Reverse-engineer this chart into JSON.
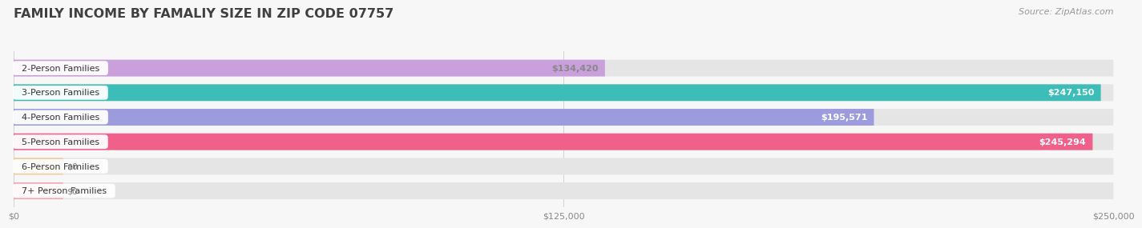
{
  "title": "FAMILY INCOME BY FAMALIY SIZE IN ZIP CODE 07757",
  "source": "Source: ZipAtlas.com",
  "categories": [
    "2-Person Families",
    "3-Person Families",
    "4-Person Families",
    "5-Person Families",
    "6-Person Families",
    "7+ Person Families"
  ],
  "values": [
    134420,
    247150,
    195571,
    245294,
    0,
    0
  ],
  "bar_colors": [
    "#c9a0dc",
    "#3dbdb8",
    "#9b9bdd",
    "#f0608a",
    "#f5c89a",
    "#f5a0b0"
  ],
  "value_label_colors": [
    "#888888",
    "#ffffff",
    "#ffffff",
    "#ffffff",
    "#888888",
    "#888888"
  ],
  "value_labels": [
    "$134,420",
    "$247,150",
    "$195,571",
    "$245,294",
    "$0",
    "$0"
  ],
  "xlim_max": 250000,
  "xticks": [
    0,
    125000,
    250000
  ],
  "xtick_labels": [
    "$0",
    "$125,000",
    "$250,000"
  ],
  "bg_color": "#f7f7f7",
  "bar_bg_color": "#e5e5e5",
  "title_fontsize": 11.5,
  "bar_height": 0.68,
  "figsize": [
    14.06,
    3.05
  ]
}
